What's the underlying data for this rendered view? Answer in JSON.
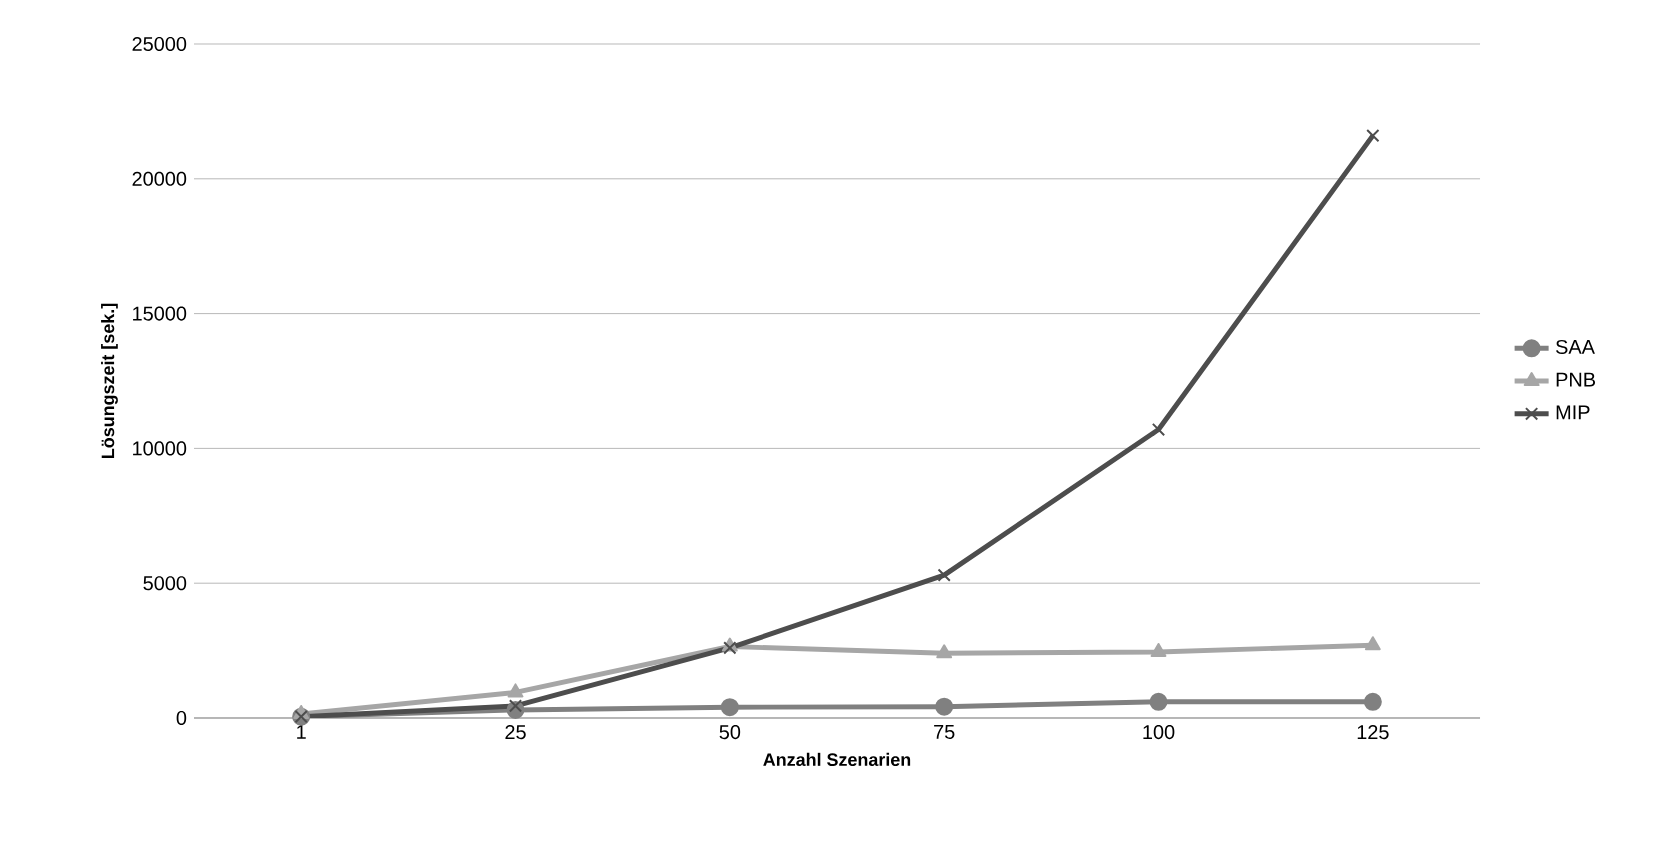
{
  "chart_data": {
    "type": "line",
    "xlabel": "Anzahl Szenarien",
    "ylabel": "Lösungszeit [sek.]",
    "categories": [
      "1",
      "25",
      "50",
      "75",
      "100",
      "125"
    ],
    "ylim": [
      0,
      25000
    ],
    "yticks": [
      0,
      5000,
      10000,
      15000,
      20000,
      25000
    ],
    "grid": "y",
    "legend": "right",
    "series": [
      {
        "name": "SAA",
        "color": "#808080",
        "marker": "circle",
        "values": [
          50,
          300,
          400,
          420,
          600,
          600
        ]
      },
      {
        "name": "PNB",
        "color": "#a6a6a6",
        "marker": "triangle",
        "values": [
          150,
          950,
          2650,
          2400,
          2450,
          2700
        ]
      },
      {
        "name": "MIP",
        "color": "#4d4d4d",
        "marker": "cross",
        "values": [
          50,
          450,
          2600,
          5300,
          10700,
          21600
        ]
      }
    ]
  }
}
